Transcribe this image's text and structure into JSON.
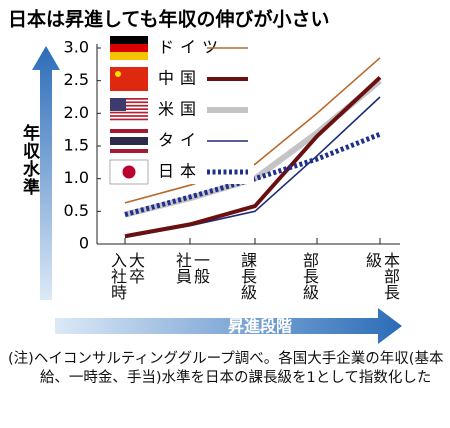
{
  "chart_data": {
    "type": "line",
    "title": "日本は昇進しても年収の伸びが小さい",
    "y_label": "年収水準",
    "x_label": "昇進段階",
    "categories": [
      "大卒\n入社時",
      "一般\n社員",
      "課長級",
      "部長級",
      "本部長\n級"
    ],
    "ylim": [
      0,
      3
    ],
    "yticks": [
      0,
      0.5,
      {
        "value": 1,
        "label": "1.0"
      },
      1.5,
      {
        "value": 2,
        "label": "2.0"
      },
      2.5,
      {
        "value": 3,
        "label": "3.0"
      }
    ],
    "series": [
      {
        "name": "ドイツ",
        "color": "#b8682a",
        "values": [
          0.63,
          0.9,
          1.22,
          2.0,
          2.85
        ]
      },
      {
        "name": "中国",
        "color": "#6a1010",
        "values": [
          0.12,
          0.3,
          0.58,
          1.65,
          2.55
        ]
      },
      {
        "name": "米国",
        "color": "#c4c4c4",
        "values": [
          0.45,
          0.7,
          1.0,
          1.7,
          2.5
        ]
      },
      {
        "name": "タイ",
        "color": "#1b2a7a",
        "values": [
          0.1,
          0.28,
          0.5,
          1.35,
          2.25
        ]
      },
      {
        "name": "日本",
        "color": "#1f2f8c",
        "values": [
          0.45,
          0.72,
          1.0,
          1.3,
          1.68
        ]
      }
    ],
    "note": "(注)ヘイコンサルティンググループ調べ。各国大手企業の年収(基本給、一時金、手当)水準を日本の課長級を1として指数化した"
  }
}
